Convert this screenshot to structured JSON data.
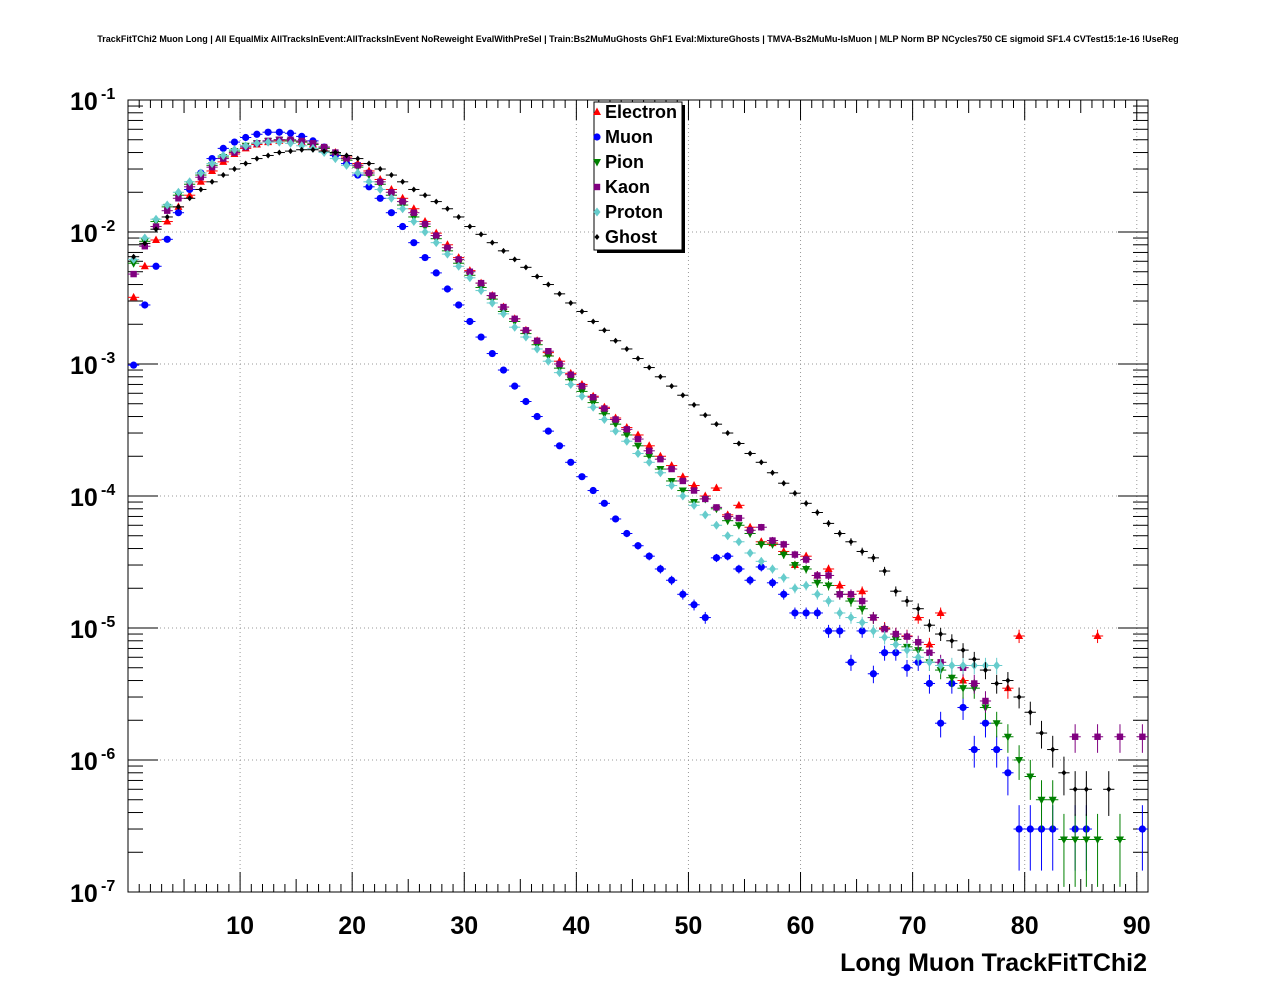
{
  "chart_data": {
    "type": "scatter",
    "title": "TrackFitTChi2 Muon Long | All EqualMix AllTracksInEvent:AllTracksInEvent NoReweight EvalWithPreSel | Train:Bs2MuMuGhosts GhF1 Eval:MixtureGhosts | TMVA-Bs2MuMu-IsMuon | MLP Norm BP NCycles750 CE sigmoid SF1.4 CVTest15:1e-16 !UseReg",
    "xlabel": "Long Muon TrackFitTChi2",
    "ylabel": "",
    "xlim": [
      0,
      91
    ],
    "ylim": [
      1e-07,
      0.1
    ],
    "yscale": "log",
    "grid": true,
    "legend_position": "top-center",
    "x_ticks": [
      10,
      20,
      30,
      40,
      50,
      60,
      70,
      80,
      90
    ],
    "x_tick_labels": [
      "10",
      "20",
      "30",
      "40",
      "50",
      "60",
      "70",
      "80",
      "90"
    ],
    "y_ticks": [
      {
        "value": 1e-07,
        "base": "10",
        "exp": "-7"
      },
      {
        "value": 1e-06,
        "base": "10",
        "exp": "-6"
      },
      {
        "value": 1e-05,
        "base": "10",
        "exp": "-5"
      },
      {
        "value": 0.0001,
        "base": "10",
        "exp": "-4"
      },
      {
        "value": 0.001,
        "base": "10",
        "exp": "-3"
      },
      {
        "value": 0.01,
        "base": "10",
        "exp": "-2"
      },
      {
        "value": 0.1,
        "base": "10",
        "exp": "-1"
      }
    ],
    "series": [
      {
        "name": "Electron",
        "color": "#ff0000",
        "marker": "triangle-up",
        "x": [
          0.5,
          1.5,
          2.5,
          3.5,
          4.5,
          5.5,
          6.5,
          7.5,
          8.5,
          9.5,
          10.5,
          11.5,
          12.5,
          13.5,
          14.5,
          15.5,
          16.5,
          17.5,
          18.5,
          19.5,
          20.5,
          21.5,
          22.5,
          23.5,
          24.5,
          25.5,
          26.5,
          27.5,
          28.5,
          29.5,
          30.5,
          31.5,
          32.5,
          33.5,
          34.5,
          35.5,
          36.5,
          37.5,
          38.5,
          39.5,
          40.5,
          41.5,
          42.5,
          43.5,
          44.5,
          45.5,
          46.5,
          47.5,
          48.5,
          49.5,
          50.5,
          51.5,
          52.5,
          53.5,
          54.5,
          55.5,
          56.5,
          57.5,
          58.5,
          59.5,
          60.5,
          61.5,
          62.5,
          63.5,
          64.5,
          65.5,
          66.5,
          67.5,
          68.5,
          69.5,
          70.5,
          71.5,
          72.5,
          74.5,
          78.5,
          79.5,
          86.5
        ],
        "y": [
          0.0032,
          0.0055,
          0.0087,
          0.012,
          0.0155,
          0.019,
          0.024,
          0.029,
          0.034,
          0.039,
          0.043,
          0.046,
          0.048,
          0.049,
          0.049,
          0.048,
          0.046,
          0.043,
          0.04,
          0.037,
          0.033,
          0.029,
          0.025,
          0.021,
          0.018,
          0.015,
          0.012,
          0.0098,
          0.008,
          0.0064,
          0.0051,
          0.0041,
          0.0033,
          0.0027,
          0.0022,
          0.0018,
          0.0015,
          0.00122,
          0.00105,
          0.00085,
          0.0007,
          0.00057,
          0.00047,
          0.00039,
          0.00033,
          0.00029,
          0.00024,
          0.0002,
          0.00017,
          0.00014,
          0.00012,
          0.0001,
          0.000115,
          7.2e-05,
          8.5e-05,
          5.8e-05,
          4.5e-05,
          4.4e-05,
          3.8e-05,
          3e-05,
          3.5e-05,
          2.5e-05,
          2.8e-05,
          2.1e-05,
          1.8e-05,
          1.9e-05,
          1.2e-05,
          1e-05,
          9e-06,
          8.7e-06,
          1.2e-05,
          7.5e-06,
          1.3e-05,
          4e-06,
          3.5e-06,
          8.7e-06,
          8.7e-06
        ]
      },
      {
        "name": "Muon",
        "color": "#0000ff",
        "marker": "circle",
        "x": [
          0.5,
          1.5,
          2.5,
          3.5,
          4.5,
          5.5,
          6.5,
          7.5,
          8.5,
          9.5,
          10.5,
          11.5,
          12.5,
          13.5,
          14.5,
          15.5,
          16.5,
          17.5,
          18.5,
          19.5,
          20.5,
          21.5,
          22.5,
          23.5,
          24.5,
          25.5,
          26.5,
          27.5,
          28.5,
          29.5,
          30.5,
          31.5,
          32.5,
          33.5,
          34.5,
          35.5,
          36.5,
          37.5,
          38.5,
          39.5,
          40.5,
          41.5,
          42.5,
          43.5,
          44.5,
          45.5,
          46.5,
          47.5,
          48.5,
          49.5,
          50.5,
          51.5,
          52.5,
          53.5,
          54.5,
          55.5,
          56.5,
          57.5,
          58.5,
          59.5,
          60.5,
          61.5,
          62.5,
          63.5,
          64.5,
          65.5,
          66.5,
          67.5,
          68.5,
          69.5,
          70.5,
          71.5,
          72.5,
          73.5,
          74.5,
          75.5,
          76.5,
          77.5,
          78.5,
          79.5,
          80.5,
          81.5,
          82.5,
          84.5,
          85.5,
          90.5
        ],
        "y": [
          0.00098,
          0.0028,
          0.0055,
          0.0088,
          0.014,
          0.021,
          0.028,
          0.036,
          0.043,
          0.048,
          0.052,
          0.055,
          0.057,
          0.057,
          0.056,
          0.053,
          0.049,
          0.044,
          0.038,
          0.033,
          0.027,
          0.022,
          0.018,
          0.014,
          0.011,
          0.0083,
          0.0064,
          0.0049,
          0.0037,
          0.0028,
          0.0021,
          0.0016,
          0.0012,
          0.0009,
          0.00068,
          0.00052,
          0.0004,
          0.00031,
          0.00024,
          0.00018,
          0.00014,
          0.00011,
          8.8e-05,
          6.7e-05,
          5.2e-05,
          4.2e-05,
          3.5e-05,
          2.8e-05,
          2.3e-05,
          1.8e-05,
          1.5e-05,
          1.2e-05,
          3.4e-05,
          3.5e-05,
          2.8e-05,
          2.3e-05,
          2.9e-05,
          2.2e-05,
          1.8e-05,
          1.3e-05,
          1.3e-05,
          1.3e-05,
          9.5e-06,
          9.5e-06,
          5.5e-06,
          9.5e-06,
          4.5e-06,
          6.5e-06,
          6.5e-06,
          5e-06,
          5.5e-06,
          3.8e-06,
          1.9e-06,
          3.8e-06,
          2.5e-06,
          1.2e-06,
          1.9e-06,
          1.2e-06,
          8e-07,
          3e-07,
          3e-07,
          3e-07,
          3e-07,
          3e-07,
          3e-07,
          3e-07
        ]
      },
      {
        "name": "Pion",
        "color": "#008000",
        "marker": "triangle-down",
        "x": [
          0.5,
          1.5,
          2.5,
          3.5,
          4.5,
          5.5,
          6.5,
          7.5,
          8.5,
          9.5,
          10.5,
          11.5,
          12.5,
          13.5,
          14.5,
          15.5,
          16.5,
          17.5,
          18.5,
          19.5,
          20.5,
          21.5,
          22.5,
          23.5,
          24.5,
          25.5,
          26.5,
          27.5,
          28.5,
          29.5,
          30.5,
          31.5,
          32.5,
          33.5,
          34.5,
          35.5,
          36.5,
          37.5,
          38.5,
          39.5,
          40.5,
          41.5,
          42.5,
          43.5,
          44.5,
          45.5,
          46.5,
          47.5,
          48.5,
          49.5,
          50.5,
          51.5,
          52.5,
          53.5,
          54.5,
          55.5,
          56.5,
          57.5,
          58.5,
          59.5,
          60.5,
          61.5,
          62.5,
          63.5,
          64.5,
          65.5,
          66.5,
          67.5,
          68.5,
          69.5,
          70.5,
          71.5,
          72.5,
          73.5,
          74.5,
          75.5,
          76.5,
          77.5,
          78.5,
          79.5,
          80.5,
          81.5,
          82.5,
          83.5,
          84.5,
          85.5,
          86.5,
          88.5
        ],
        "y": [
          0.0058,
          0.0085,
          0.012,
          0.0155,
          0.019,
          0.023,
          0.027,
          0.032,
          0.037,
          0.041,
          0.045,
          0.047,
          0.049,
          0.05,
          0.049,
          0.048,
          0.046,
          0.043,
          0.039,
          0.035,
          0.031,
          0.027,
          0.023,
          0.019,
          0.016,
          0.013,
          0.011,
          0.0089,
          0.0072,
          0.0058,
          0.0047,
          0.0038,
          0.0031,
          0.0025,
          0.0021,
          0.0017,
          0.0014,
          0.00115,
          0.00093,
          0.00076,
          0.00062,
          0.00051,
          0.00042,
          0.00035,
          0.00029,
          0.00024,
          0.0002,
          0.00016,
          0.00013,
          0.00011,
          9e-05,
          9.5e-05,
          8e-05,
          6.5e-05,
          6e-05,
          5.2e-05,
          4.3e-05,
          4.3e-05,
          3.6e-05,
          3e-05,
          2.8e-05,
          2.2e-05,
          2.1e-05,
          1.8e-05,
          1.6e-05,
          1.4e-05,
          1.2e-05,
          9.8e-06,
          8.2e-06,
          7.2e-06,
          6.8e-06,
          5.5e-06,
          4.8e-06,
          4.2e-06,
          3.5e-06,
          3.5e-06,
          2.5e-06,
          1.9e-06,
          1.5e-06,
          1e-06,
          7.5e-07,
          5e-07,
          5e-07,
          2.5e-07,
          2.5e-07,
          2.5e-07,
          2.5e-07,
          2.5e-07
        ]
      },
      {
        "name": "Kaon",
        "color": "#800080",
        "marker": "square",
        "x": [
          0.5,
          1.5,
          2.5,
          3.5,
          4.5,
          5.5,
          6.5,
          7.5,
          8.5,
          9.5,
          10.5,
          11.5,
          12.5,
          13.5,
          14.5,
          15.5,
          16.5,
          17.5,
          18.5,
          19.5,
          20.5,
          21.5,
          22.5,
          23.5,
          24.5,
          25.5,
          26.5,
          27.5,
          28.5,
          29.5,
          30.5,
          31.5,
          32.5,
          33.5,
          34.5,
          35.5,
          36.5,
          37.5,
          38.5,
          39.5,
          40.5,
          41.5,
          42.5,
          43.5,
          44.5,
          45.5,
          46.5,
          47.5,
          48.5,
          49.5,
          50.5,
          51.5,
          52.5,
          53.5,
          54.5,
          55.5,
          56.5,
          57.5,
          58.5,
          59.5,
          60.5,
          61.5,
          62.5,
          63.5,
          64.5,
          65.5,
          66.5,
          67.5,
          68.5,
          69.5,
          70.5,
          71.5,
          72.5,
          74.5,
          75.5,
          76.5,
          84.5,
          86.5,
          88.5,
          90.5
        ],
        "y": [
          0.0048,
          0.0078,
          0.011,
          0.0145,
          0.018,
          0.022,
          0.026,
          0.031,
          0.036,
          0.04,
          0.044,
          0.047,
          0.049,
          0.05,
          0.05,
          0.049,
          0.047,
          0.044,
          0.04,
          0.036,
          0.032,
          0.028,
          0.024,
          0.02,
          0.017,
          0.014,
          0.0115,
          0.0094,
          0.0076,
          0.0062,
          0.005,
          0.0041,
          0.0033,
          0.0027,
          0.0022,
          0.0018,
          0.0015,
          0.00125,
          0.001,
          0.00083,
          0.00068,
          0.00056,
          0.00046,
          0.00038,
          0.00032,
          0.00027,
          0.00022,
          0.00019,
          0.00016,
          0.00013,
          0.00011,
          9.5e-05,
          8.2e-05,
          7e-05,
          6.8e-05,
          5.5e-05,
          5.8e-05,
          4.6e-05,
          4.3e-05,
          3.6e-05,
          3.3e-05,
          2.5e-05,
          2.5e-05,
          1.8e-05,
          1.8e-05,
          1.6e-05,
          1.2e-05,
          9.8e-06,
          9e-06,
          8.6e-06,
          7.8e-06,
          6.5e-06,
          5.5e-06,
          5e-06,
          3.8e-06,
          2.8e-06,
          1.5e-06,
          1.5e-06,
          1.5e-06,
          1.5e-06
        ]
      },
      {
        "name": "Proton",
        "color": "#66cccc",
        "marker": "diamond",
        "x": [
          0.5,
          1.5,
          2.5,
          3.5,
          4.5,
          5.5,
          6.5,
          7.5,
          8.5,
          9.5,
          10.5,
          11.5,
          12.5,
          13.5,
          14.5,
          15.5,
          16.5,
          17.5,
          18.5,
          19.5,
          20.5,
          21.5,
          22.5,
          23.5,
          24.5,
          25.5,
          26.5,
          27.5,
          28.5,
          29.5,
          30.5,
          31.5,
          32.5,
          33.5,
          34.5,
          35.5,
          36.5,
          37.5,
          38.5,
          39.5,
          40.5,
          41.5,
          42.5,
          43.5,
          44.5,
          45.5,
          46.5,
          47.5,
          48.5,
          49.5,
          50.5,
          51.5,
          52.5,
          53.5,
          54.5,
          55.5,
          56.5,
          57.5,
          58.5,
          59.5,
          60.5,
          61.5,
          62.5,
          63.5,
          64.5,
          65.5,
          66.5,
          67.5,
          68.5,
          69.5,
          70.5,
          71.5,
          72.5,
          73.5,
          74.5,
          75.5,
          76.5,
          77.5
        ],
        "y": [
          0.0062,
          0.009,
          0.0125,
          0.016,
          0.02,
          0.024,
          0.028,
          0.033,
          0.038,
          0.042,
          0.045,
          0.047,
          0.048,
          0.048,
          0.047,
          0.045,
          0.043,
          0.04,
          0.036,
          0.032,
          0.028,
          0.024,
          0.021,
          0.018,
          0.015,
          0.012,
          0.01,
          0.0083,
          0.0068,
          0.0055,
          0.0045,
          0.0036,
          0.0029,
          0.0024,
          0.0019,
          0.0016,
          0.0013,
          0.00105,
          0.00086,
          0.0007,
          0.00057,
          0.00047,
          0.00038,
          0.00031,
          0.00026,
          0.00021,
          0.00018,
          0.00015,
          0.00012,
          0.0001,
          8.5e-05,
          7.2e-05,
          6e-05,
          5e-05,
          4.5e-05,
          3.7e-05,
          3.2e-05,
          2.8e-05,
          2.4e-05,
          2e-05,
          2.1e-05,
          1.8e-05,
          1.6e-05,
          1.3e-05,
          1.2e-05,
          1.1e-05,
          9.5e-06,
          8.5e-06,
          7.5e-06,
          6.8e-06,
          6e-06,
          5.5e-06,
          5.2e-06,
          5.2e-06,
          5.2e-06,
          5.2e-06,
          5.2e-06,
          5.2e-06
        ]
      },
      {
        "name": "Ghost",
        "color": "#000000",
        "marker": "diamond-small",
        "x": [
          0.5,
          1.5,
          2.5,
          3.5,
          4.5,
          5.5,
          6.5,
          7.5,
          8.5,
          9.5,
          10.5,
          11.5,
          12.5,
          13.5,
          14.5,
          15.5,
          16.5,
          17.5,
          18.5,
          19.5,
          20.5,
          21.5,
          22.5,
          23.5,
          24.5,
          25.5,
          26.5,
          27.5,
          28.5,
          29.5,
          30.5,
          31.5,
          32.5,
          33.5,
          34.5,
          35.5,
          36.5,
          37.5,
          38.5,
          39.5,
          40.5,
          41.5,
          42.5,
          43.5,
          44.5,
          45.5,
          46.5,
          47.5,
          48.5,
          49.5,
          50.5,
          51.5,
          52.5,
          53.5,
          54.5,
          55.5,
          56.5,
          57.5,
          58.5,
          59.5,
          60.5,
          61.5,
          62.5,
          63.5,
          64.5,
          65.5,
          66.5,
          67.5,
          68.5,
          69.5,
          70.5,
          71.5,
          72.5,
          73.5,
          74.5,
          75.5,
          76.5,
          77.5,
          78.5,
          79.5,
          80.5,
          81.5,
          82.5,
          83.5,
          84.5,
          85.5,
          87.5
        ],
        "y": [
          0.0065,
          0.0082,
          0.0105,
          0.013,
          0.0155,
          0.018,
          0.021,
          0.024,
          0.027,
          0.03,
          0.033,
          0.036,
          0.038,
          0.04,
          0.041,
          0.042,
          0.042,
          0.041,
          0.04,
          0.038,
          0.036,
          0.033,
          0.03,
          0.027,
          0.024,
          0.021,
          0.019,
          0.017,
          0.015,
          0.013,
          0.011,
          0.0096,
          0.0083,
          0.0072,
          0.0062,
          0.0054,
          0.0046,
          0.004,
          0.0034,
          0.0029,
          0.0025,
          0.0021,
          0.0018,
          0.0015,
          0.0013,
          0.0011,
          0.00094,
          0.0008,
          0.00068,
          0.00058,
          0.00049,
          0.00041,
          0.00035,
          0.0003,
          0.00025,
          0.00021,
          0.00018,
          0.00015,
          0.000125,
          0.000105,
          8.8e-05,
          7.5e-05,
          6.2e-05,
          5.2e-05,
          4.5e-05,
          3.8e-05,
          3.4e-05,
          2.7e-05,
          1.9e-05,
          1.6e-05,
          1.4e-05,
          1.05e-05,
          9e-06,
          8e-06,
          6.8e-06,
          5.8e-06,
          4.8e-06,
          3.8e-06,
          4e-06,
          3e-06,
          2.3e-06,
          1.6e-06,
          1.2e-06,
          8e-07,
          6e-07,
          6e-07,
          6e-07
        ]
      }
    ]
  }
}
